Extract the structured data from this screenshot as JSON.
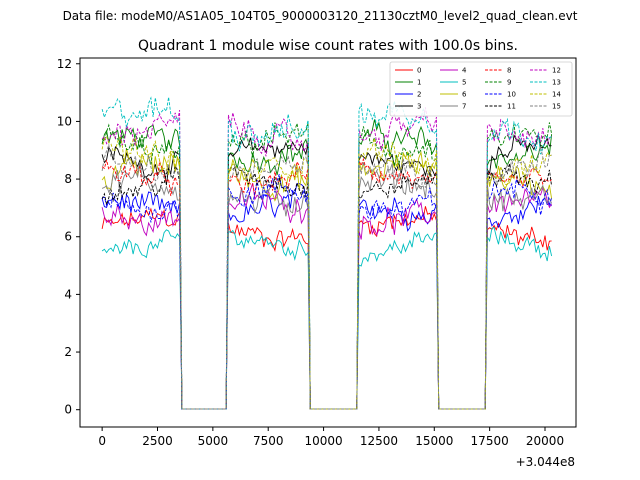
{
  "suptitle": "Data file: modeM0/AS1A05_104T05_9000003120_21130cztM0_level2_quad_clean.evt",
  "chart_data": {
    "type": "line",
    "title": "Quadrant 1 module wise count rates with 100.0s bins.",
    "xlabel": "",
    "ylabel": "",
    "x_offset_label": "+3.044e8",
    "xlim": [
      -1000,
      21400
    ],
    "ylim": [
      -0.6,
      12.2
    ],
    "x_ticks": [
      0,
      2500,
      5000,
      7500,
      10000,
      12500,
      15000,
      17500,
      20000
    ],
    "x_tick_labels": [
      "0",
      "2500",
      "5000",
      "7500",
      "10000",
      "12500",
      "15000",
      "17500",
      "20000"
    ],
    "y_ticks": [
      0,
      2,
      4,
      6,
      8,
      10,
      12
    ],
    "y_tick_labels": [
      "0",
      "2",
      "4",
      "6",
      "8",
      "10",
      "12"
    ],
    "legend_position": "upper-right",
    "legend_columns": 4,
    "bin_seconds": 100,
    "x_start": 0,
    "x_end": 20300,
    "gti": [
      [
        0,
        3500
      ],
      [
        5700,
        9300
      ],
      [
        11600,
        15100
      ],
      [
        17400,
        20300
      ]
    ],
    "series": [
      {
        "name": "0",
        "color": "#ff0000",
        "dash": "solid",
        "mean": 6.3,
        "noise": 0.3
      },
      {
        "name": "1",
        "color": "#008000",
        "dash": "solid",
        "mean": 9.1,
        "noise": 0.35
      },
      {
        "name": "2",
        "color": "#0000ff",
        "dash": "solid",
        "mean": 7.0,
        "noise": 0.35
      },
      {
        "name": "3",
        "color": "#000000",
        "dash": "solid",
        "mean": 8.8,
        "noise": 0.3
      },
      {
        "name": "4",
        "color": "#bf00bf",
        "dash": "solid",
        "mean": 6.9,
        "noise": 0.35
      },
      {
        "name": "5",
        "color": "#00bfbf",
        "dash": "solid",
        "mean": 5.7,
        "noise": 0.25
      },
      {
        "name": "6",
        "color": "#bfbf00",
        "dash": "solid",
        "mean": 8.2,
        "noise": 0.4
      },
      {
        "name": "7",
        "color": "#808080",
        "dash": "solid",
        "mean": 7.6,
        "noise": 0.4
      },
      {
        "name": "8",
        "color": "#ff0000",
        "dash": "dashed",
        "mean": 8.0,
        "noise": 0.3
      },
      {
        "name": "9",
        "color": "#008000",
        "dash": "dashed",
        "mean": 9.2,
        "noise": 0.35
      },
      {
        "name": "10",
        "color": "#0000ff",
        "dash": "dashed",
        "mean": 7.3,
        "noise": 0.35
      },
      {
        "name": "11",
        "color": "#000000",
        "dash": "dashed",
        "mean": 7.9,
        "noise": 0.3
      },
      {
        "name": "12",
        "color": "#bf00bf",
        "dash": "dashed",
        "mean": 9.6,
        "noise": 0.35
      },
      {
        "name": "13",
        "color": "#00bfbf",
        "dash": "dashed",
        "mean": 10.0,
        "noise": 0.4
      },
      {
        "name": "14",
        "color": "#bfbf00",
        "dash": "dashed",
        "mean": 8.6,
        "noise": 0.35
      },
      {
        "name": "15",
        "color": "#808080",
        "dash": "dashed",
        "mean": 8.4,
        "noise": 0.35
      }
    ]
  }
}
